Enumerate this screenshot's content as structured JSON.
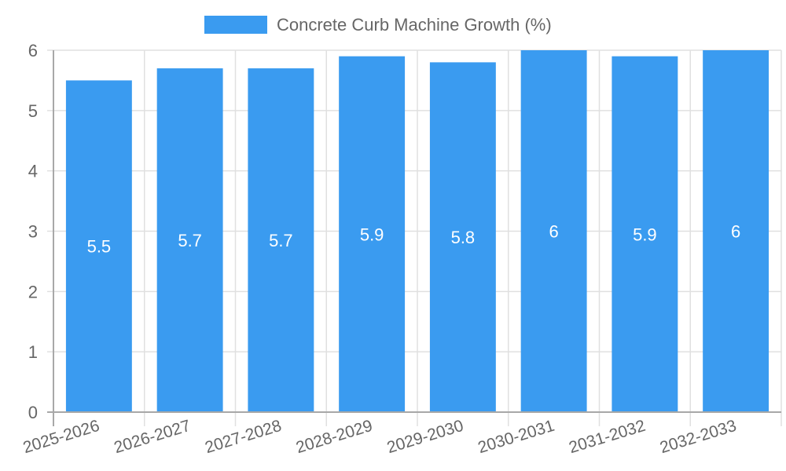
{
  "chart_data": {
    "type": "bar",
    "title": "",
    "xlabel": "",
    "ylabel": "",
    "categories": [
      "2025-2026",
      "2026-2027",
      "2027-2028",
      "2028-2029",
      "2029-2030",
      "2030-2031",
      "2031-2032",
      "2032-2033"
    ],
    "series": [
      {
        "name": "Concrete Curb Machine Growth (%)",
        "color": "#3a9bf0",
        "values": [
          5.5,
          5.7,
          5.7,
          5.9,
          5.8,
          6,
          5.9,
          6
        ]
      }
    ],
    "data_labels": [
      "5.5",
      "5.7",
      "5.7",
      "5.9",
      "5.8",
      "6",
      "5.9",
      "6"
    ],
    "ylim": [
      0,
      6
    ],
    "yticks": [
      0,
      1,
      2,
      3,
      4,
      5,
      6
    ],
    "grid": true,
    "legend_position": "top"
  },
  "legend": {
    "label": "Concrete Curb Machine Growth (%)",
    "swatch_color": "#3a9bf0"
  },
  "colors": {
    "grid": "#e0e0e0",
    "axis": "#a8a8a8",
    "text": "#666666"
  }
}
